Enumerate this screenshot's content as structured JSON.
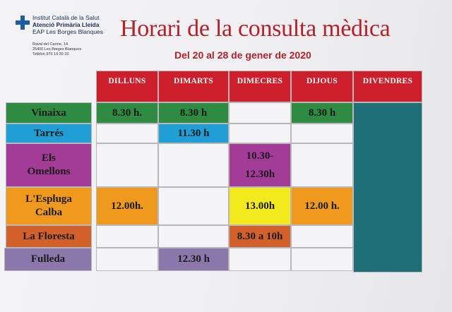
{
  "header": {
    "org_lines": [
      "Institut Català de la Salut",
      "Atenció Primària Lleida",
      "EAP Les Borges Blanques"
    ],
    "address_lines": [
      "Raval del Carme, 14",
      "25400 Les Borges Blanques",
      "Telèfon 973 14 20 33"
    ],
    "title": "Horari de la consulta mèdica",
    "subtitle": "Del 20 al 28 de gener de 2020"
  },
  "colors": {
    "header_red": "#cc1f2b",
    "vinaixa": "#2f8a42",
    "tarres": "#1f9fd6",
    "omellons": "#a33c97",
    "espluga": "#ef9a1f",
    "floresta": "#d2602a",
    "fulleda": "#8a78ad",
    "yellow": "#f3ea1e",
    "divendres": "#1f6f78"
  },
  "days": [
    "DILLUNS",
    "DIMARTS",
    "DIMECRES",
    "DIJOUS",
    "DIVENDRES"
  ],
  "rows": [
    {
      "name": "Vinaixa",
      "name_lines": [
        "Vinaixa"
      ],
      "cells": [
        [
          "8.30 h."
        ],
        [
          "8.30 h"
        ],
        [],
        [
          "8.30 h"
        ]
      ]
    },
    {
      "name": "Tarrés",
      "name_lines": [
        "Tarrés"
      ],
      "cells": [
        [],
        [
          "11.30 h"
        ],
        [],
        []
      ]
    },
    {
      "name": "Els Omellons",
      "name_lines": [
        "Els",
        "Omellons"
      ],
      "cells": [
        [],
        [],
        [
          "10.30-",
          "12.30h"
        ],
        []
      ]
    },
    {
      "name": "L'Espluga Calba",
      "name_lines": [
        "L'Espluga",
        "Calba"
      ],
      "cells": [
        [
          "12.00h."
        ],
        [],
        [
          "13.00h"
        ],
        [
          "12.00 h."
        ]
      ]
    },
    {
      "name": "La Floresta",
      "name_lines": [
        "La Floresta"
      ],
      "cells": [
        [],
        [],
        [
          "8.30 a 10h"
        ],
        []
      ]
    },
    {
      "name": "Fulleda",
      "name_lines": [
        "Fulleda"
      ],
      "cells": [
        [],
        [
          "12.30 h"
        ],
        [],
        []
      ]
    }
  ]
}
